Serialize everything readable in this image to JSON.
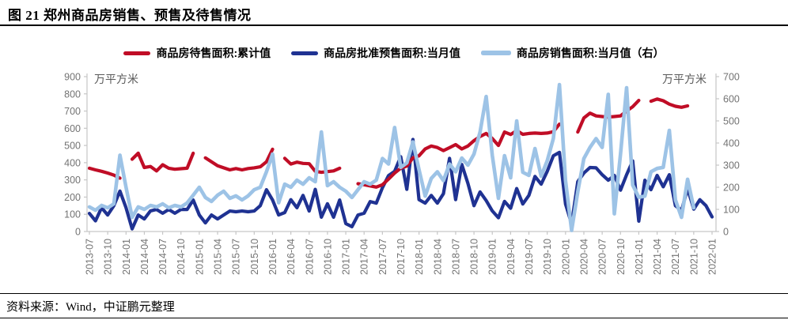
{
  "page": {
    "title": "图 21  郑州商品房销售、预售及待售情况",
    "source": "资料来源：Wind，中证鹏元整理"
  },
  "chart_data": {
    "type": "line",
    "title": "郑州商品房销售、预售及待售情况",
    "unit_label_left": "万平方米",
    "unit_label_right": "万平方米",
    "legend_position": "top",
    "grid": false,
    "start_month": "2013-07",
    "x_ticks": [
      "2013-07",
      "2013-10",
      "2014-01",
      "2014-04",
      "2014-07",
      "2014-10",
      "2015-01",
      "2015-04",
      "2015-07",
      "2015-10",
      "2016-01",
      "2016-04",
      "2016-07",
      "2016-10",
      "2017-01",
      "2017-04",
      "2017-07",
      "2017-10",
      "2018-01",
      "2018-04",
      "2018-07",
      "2018-10",
      "2019-01",
      "2019-04",
      "2019-07",
      "2019-10",
      "2020-01",
      "2020-04",
      "2020-07",
      "2020-10",
      "2021-01",
      "2021-04",
      "2021-07",
      "2021-10",
      "2022-01"
    ],
    "left_axis": {
      "min": 0,
      "max": 900,
      "step": 100
    },
    "right_axis": {
      "min": 0,
      "max": 700,
      "step": 100
    },
    "axis_color": "#c6c6c6",
    "series": [
      {
        "name": "商品房待售面积:累计值",
        "axis": "left",
        "color": "#c00d26",
        "values": [
          368,
          358,
          350,
          340,
          328,
          310,
          null,
          420,
          455,
          372,
          378,
          352,
          388,
          368,
          362,
          365,
          368,
          455,
          null,
          428,
          405,
          382,
          370,
          358,
          366,
          358,
          366,
          370,
          376,
          405,
          478,
          null,
          425,
          392,
          403,
          396,
          394,
          350,
          344,
          348,
          352,
          368,
          null,
          null,
          278,
          272,
          265,
          258,
          272,
          305,
          340,
          368,
          380,
          428,
          440,
          480,
          497,
          488,
          470,
          487,
          505,
          480,
          497,
          528,
          552,
          570,
          541,
          500,
          578,
          564,
          587,
          565,
          570,
          572,
          570,
          572,
          580,
          624,
          null,
          null,
          578,
          660,
          688,
          672,
          668,
          665,
          668,
          672,
          700,
          725,
          762,
          null,
          757,
          770,
          760,
          740,
          728,
          722,
          730,
          null,
          null,
          null,
          null
        ]
      },
      {
        "name": "商品房批准预售面积:当月值",
        "axis": "left",
        "color": "#1f3292",
        "values": [
          105,
          62,
          138,
          96,
          150,
          235,
          138,
          15,
          96,
          73,
          120,
          128,
          106,
          128,
          106,
          128,
          128,
          183,
          96,
          50,
          96,
          73,
          96,
          119,
          115,
          119,
          115,
          119,
          150,
          243,
          183,
          96,
          110,
          185,
          138,
          210,
          119,
          245,
          83,
          161,
          83,
          183,
          46,
          28,
          96,
          106,
          174,
          165,
          255,
          325,
          350,
          435,
          245,
          535,
          185,
          165,
          210,
          165,
          220,
          425,
          185,
          390,
          280,
          150,
          230,
          180,
          120,
          80,
          175,
          135,
          250,
          160,
          210,
          320,
          275,
          350,
          440,
          460,
          160,
          45,
          290,
          340,
          372,
          370,
          330,
          298,
          326,
          240,
          330,
          410,
          60,
          298,
          243,
          326,
          260,
          330,
          150,
          122,
          250,
          130,
          185,
          150,
          85
        ]
      },
      {
        "name": "商品房销售面积:当月值（右）",
        "axis": "right",
        "color": "#9dc3e6",
        "values": [
          111,
          96,
          118,
          107,
          125,
          345,
          200,
          64,
          111,
          100,
          118,
          111,
          125,
          107,
          118,
          111,
          129,
          164,
          200,
          154,
          136,
          164,
          182,
          150,
          161,
          143,
          161,
          189,
          200,
          270,
          350,
          130,
          214,
          200,
          232,
          214,
          243,
          225,
          450,
          207,
          225,
          200,
          182,
          154,
          189,
          225,
          214,
          232,
          330,
          305,
          470,
          290,
          310,
          405,
          280,
          160,
          240,
          270,
          230,
          305,
          270,
          332,
          300,
          350,
          450,
          610,
          345,
          150,
          343,
          243,
          500,
          268,
          254,
          375,
          250,
          320,
          420,
          664,
          230,
          5,
          180,
          330,
          380,
          420,
          380,
          620,
          80,
          350,
          650,
          210,
          155,
          160,
          270,
          285,
          290,
          457,
          143,
          64,
          236,
          107,
          null,
          null,
          null
        ]
      }
    ]
  }
}
